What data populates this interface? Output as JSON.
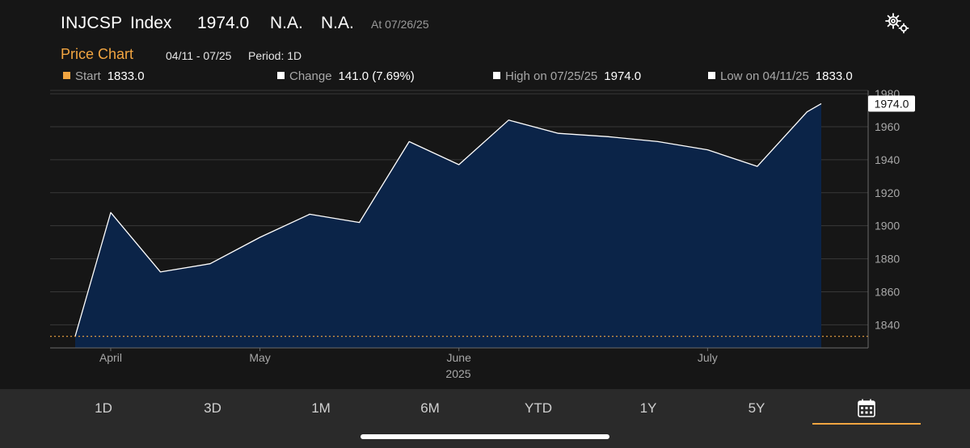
{
  "header": {
    "ticker": "INJCSP",
    "type": "Index",
    "price": "1974.0",
    "change": "N.A.",
    "change_pct": "N.A.",
    "as_of": "At 07/26/25"
  },
  "subheader": {
    "title": "Price Chart",
    "range": "04/11 - 07/25",
    "period": "Period: 1D"
  },
  "stats": [
    {
      "label": "Start",
      "value": "1833.0",
      "color": "#f2a541"
    },
    {
      "label": "Change",
      "value": "141.0 (7.69%)",
      "color": "#ffffff"
    },
    {
      "label": "High on 07/25/25",
      "value": "1974.0",
      "color": "#ffffff"
    },
    {
      "label": "Low on 04/11/25",
      "value": "1833.0",
      "color": "#ffffff"
    }
  ],
  "chart_data": {
    "type": "area",
    "x": [
      "04/11",
      "04/16",
      "04/23",
      "04/30",
      "05/07",
      "05/14",
      "05/21",
      "05/28",
      "06/04",
      "06/11",
      "06/18",
      "06/25",
      "07/02",
      "07/09",
      "07/16",
      "07/23",
      "07/25"
    ],
    "y": [
      1833,
      1908,
      1872,
      1877,
      1893,
      1907,
      1902,
      1951,
      1937,
      1964,
      1956,
      1954,
      1951,
      1946,
      1936,
      1969,
      1974
    ],
    "x_tick_labels": [
      "April",
      "May",
      "June",
      "July"
    ],
    "x_tick_positions": [
      "04/16",
      "05/07",
      "06/04",
      "07/09"
    ],
    "x_axis_label": "2025",
    "y_ticks": [
      1840,
      1860,
      1880,
      1900,
      1920,
      1940,
      1960,
      1980
    ],
    "ylim": [
      1826,
      1982
    ],
    "last_value_label": "1974.0",
    "reference_line": 1833,
    "grid": true,
    "line_color": "#ffffff",
    "fill_color": "#0b2448",
    "reference_color": "#f2a541"
  },
  "periods": [
    "1D",
    "3D",
    "1M",
    "6M",
    "YTD",
    "1Y",
    "5Y"
  ],
  "selected": "calendar"
}
